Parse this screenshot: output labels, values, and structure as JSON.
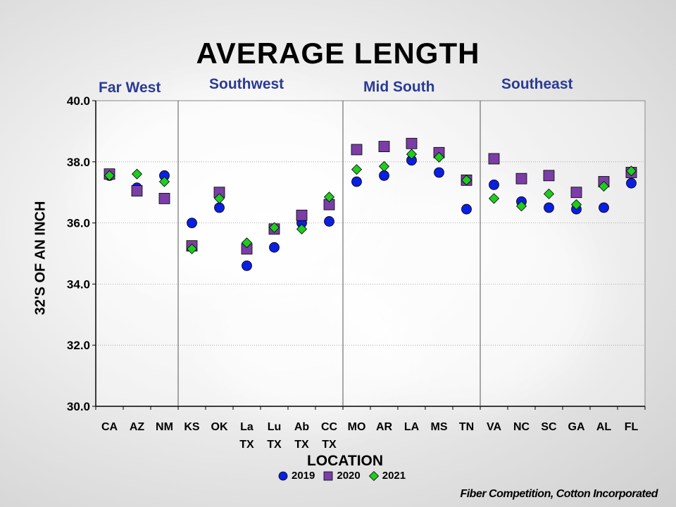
{
  "chart_data": {
    "type": "scatter",
    "title": "AVERAGE LENGTH",
    "xlabel": "LOCATION",
    "ylabel": "32'S OF AN INCH",
    "ylim": [
      30.0,
      40.0
    ],
    "yticks": [
      "30.0",
      "32.0",
      "34.0",
      "36.0",
      "38.0",
      "40.0"
    ],
    "grid": "horizontal dotted",
    "legend_position": "bottom",
    "categories": [
      [
        "CA"
      ],
      [
        "AZ"
      ],
      [
        "NM"
      ],
      [
        "KS"
      ],
      [
        "OK"
      ],
      [
        "La",
        "TX"
      ],
      [
        "Lu",
        "TX"
      ],
      [
        "Ab",
        "TX"
      ],
      [
        "CC",
        "TX"
      ],
      [
        "MO"
      ],
      [
        "AR"
      ],
      [
        "LA"
      ],
      [
        "MS"
      ],
      [
        "TN"
      ],
      [
        "VA"
      ],
      [
        "NC"
      ],
      [
        "SC"
      ],
      [
        "GA"
      ],
      [
        "AL"
      ],
      [
        "FL"
      ]
    ],
    "regions": [
      {
        "name": "Far West",
        "count": 3
      },
      {
        "name": "Southwest",
        "count": 6
      },
      {
        "name": "Mid South",
        "count": 5
      },
      {
        "name": "Southeast",
        "count": 6
      }
    ],
    "series": [
      {
        "name": "2019",
        "marker": "circle",
        "color": "#0a1fe0",
        "values": [
          37.55,
          37.15,
          37.55,
          36.0,
          36.5,
          34.6,
          35.2,
          36.0,
          36.05,
          37.35,
          37.55,
          38.05,
          37.65,
          36.45,
          37.25,
          36.7,
          36.5,
          36.45,
          36.5,
          37.3
        ]
      },
      {
        "name": "2020",
        "marker": "square",
        "color": "#7a3ea6",
        "values": [
          37.6,
          37.05,
          36.8,
          35.25,
          37.0,
          35.15,
          35.8,
          36.25,
          36.6,
          38.4,
          38.5,
          38.6,
          38.3,
          37.4,
          38.1,
          37.45,
          37.55,
          37.0,
          37.35,
          37.65
        ]
      },
      {
        "name": "2021",
        "marker": "diamond",
        "color": "#1fcc1f",
        "values": [
          37.55,
          37.6,
          37.35,
          35.15,
          36.8,
          35.35,
          35.85,
          35.8,
          36.85,
          37.75,
          37.85,
          38.25,
          38.15,
          37.4,
          36.8,
          36.55,
          36.95,
          36.6,
          37.2,
          37.7
        ]
      }
    ]
  },
  "credit": "Fiber Competition, Cotton Incorporated"
}
